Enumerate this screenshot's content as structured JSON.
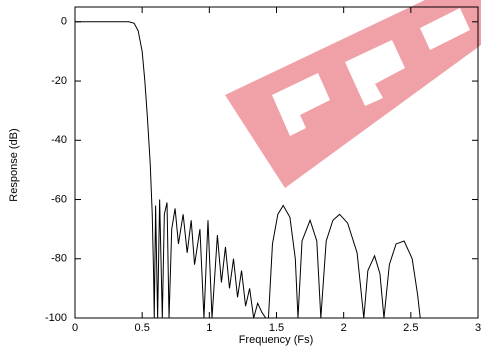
{
  "chart_data": {
    "type": "line",
    "x_label": "Frequency (Fs)",
    "y_label": "Response (dB)",
    "xlim": [
      0,
      3
    ],
    "xticks": [
      0,
      0.5,
      1,
      1.5,
      2,
      2.5,
      3
    ],
    "ylim": [
      -100,
      5
    ],
    "yticks": [
      0,
      -20,
      -40,
      -60,
      -80,
      -100
    ],
    "series": [
      {
        "color": "#000000",
        "x": [
          0,
          0.4,
          0.44,
          0.47,
          0.5,
          0.52,
          0.54,
          0.56,
          0.575,
          0.585,
          0.59,
          0.6,
          0.615,
          0.63,
          0.65,
          0.665,
          0.685,
          0.7,
          0.72,
          0.745,
          0.77,
          0.805,
          0.835,
          0.865,
          0.89,
          0.93,
          0.96,
          0.99,
          1.02,
          1.06,
          1.09,
          1.12,
          1.15,
          1.18,
          1.21,
          1.24,
          1.27,
          1.3,
          1.33,
          1.36,
          1.39,
          1.42,
          1.44,
          1.47,
          1.51,
          1.55,
          1.6,
          1.64,
          1.66,
          1.69,
          1.75,
          1.8,
          1.83,
          1.87,
          1.92,
          1.97,
          2.03,
          2.1,
          2.15,
          2.18,
          2.23,
          2.27,
          2.3,
          2.34,
          2.39,
          2.45,
          2.51,
          2.55,
          2.57
        ],
        "values": [
          0,
          0,
          -0.5,
          -3,
          -10,
          -20,
          -33,
          -48,
          -65,
          -85,
          -100,
          -62,
          -100,
          -60,
          -100,
          -65,
          -61,
          -100,
          -70,
          -63,
          -75,
          -65,
          -78,
          -67,
          -82,
          -70,
          -100,
          -67,
          -100,
          -72,
          -88,
          -76,
          -90,
          -80,
          -93,
          -84,
          -96,
          -90,
          -100,
          -95,
          -98,
          -100,
          -100,
          -75,
          -65,
          -62,
          -66,
          -80,
          -100,
          -74,
          -67,
          -74,
          -100,
          -74,
          -67,
          -65,
          -68,
          -78,
          -100,
          -84,
          -79,
          -85,
          -100,
          -82,
          -75,
          -74,
          -80,
          -92,
          -100
        ]
      }
    ]
  }
}
